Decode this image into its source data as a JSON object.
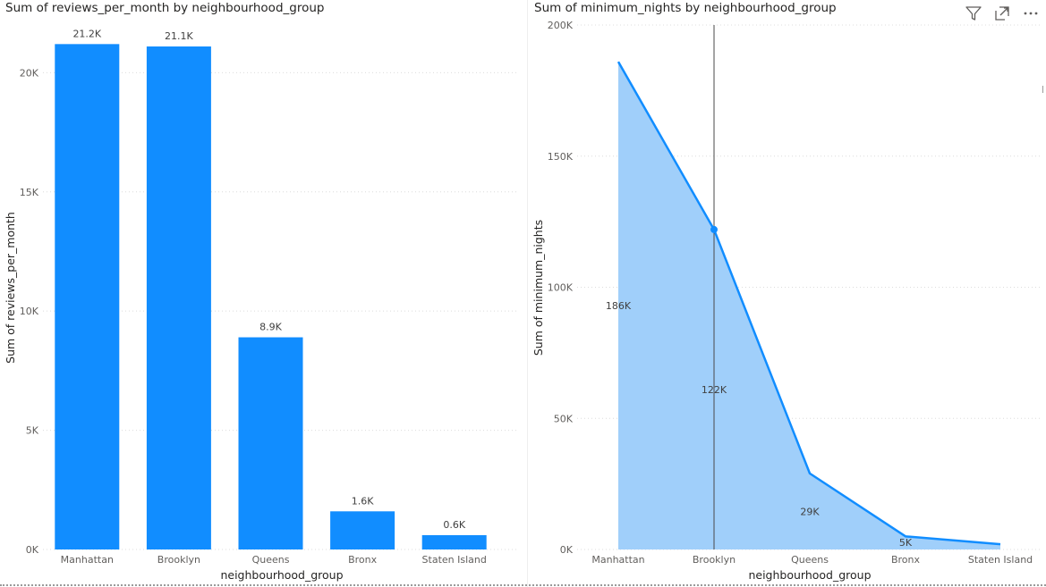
{
  "left_visual": {
    "title": "Sum of reviews_per_month by neighbourhood_group"
  },
  "right_visual": {
    "title": "Sum of minimum_nights by neighbourhood_group",
    "icons": [
      "filter-icon",
      "focus-mode-icon",
      "more-options-icon"
    ]
  },
  "colors": {
    "bar": "#118dff",
    "line": "#118dff",
    "area": "#a0cffa",
    "grid": "#dcdcdc"
  },
  "chart_data": [
    {
      "type": "bar",
      "title": "Sum of reviews_per_month by neighbourhood_group",
      "xlabel": "neighbourhood_group",
      "ylabel": "Sum of reviews_per_month",
      "categories": [
        "Manhattan",
        "Brooklyn",
        "Queens",
        "Bronx",
        "Staten Island"
      ],
      "values": [
        21200,
        21100,
        8900,
        1600,
        600
      ],
      "data_labels": [
        "21.2K",
        "21.1K",
        "8.9K",
        "1.6K",
        "0.6K"
      ],
      "ylim": [
        0,
        22000
      ],
      "yticks": [
        0,
        5000,
        10000,
        15000,
        20000
      ],
      "ytick_labels": [
        "0K",
        "5K",
        "10K",
        "15K",
        "20K"
      ],
      "grid": true
    },
    {
      "type": "area",
      "title": "Sum of minimum_nights by neighbourhood_group",
      "xlabel": "neighbourhood_group",
      "ylabel": "Sum of minimum_nights",
      "categories": [
        "Manhattan",
        "Brooklyn",
        "Queens",
        "Bronx",
        "Staten Island"
      ],
      "values": [
        186000,
        122000,
        29000,
        5000,
        2000
      ],
      "data_labels": [
        "186K",
        "122K",
        "29K",
        "5K",
        ""
      ],
      "ylim": [
        0,
        200000
      ],
      "yticks": [
        0,
        50000,
        100000,
        150000,
        200000
      ],
      "ytick_labels": [
        "0K",
        "50K",
        "100K",
        "150K",
        "200K"
      ],
      "highlighted_category": "Brooklyn",
      "grid": true
    }
  ]
}
